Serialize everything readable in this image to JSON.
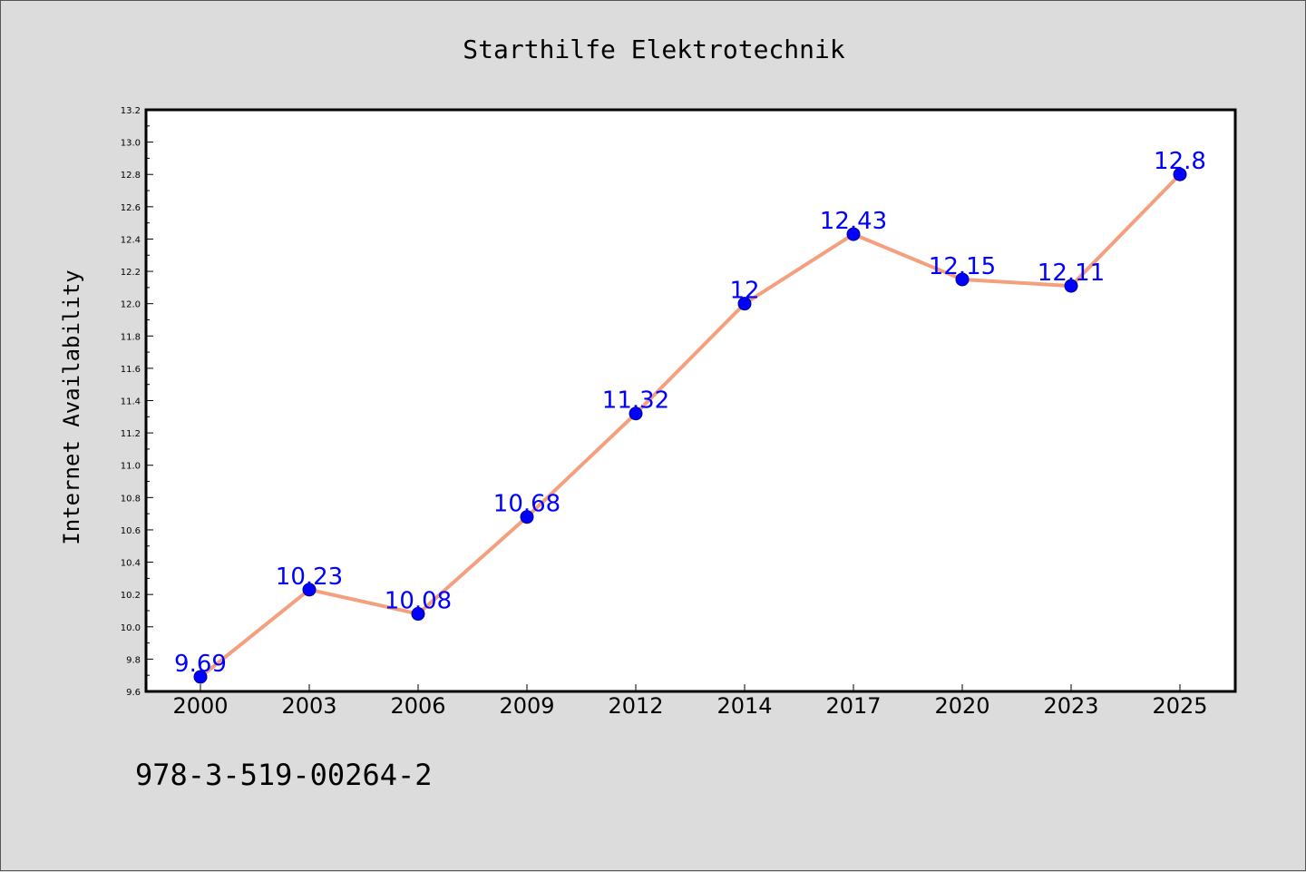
{
  "chart_data": {
    "type": "line",
    "title": "Starthilfe Elektrotechnik",
    "ylabel": "Internet Availability",
    "xlabel": "",
    "categories": [
      "2000",
      "2003",
      "2006",
      "2009",
      "2012",
      "2014",
      "2017",
      "2020",
      "2023",
      "2025"
    ],
    "series": [
      {
        "values": [
          9.69,
          10.23,
          10.08,
          10.68,
          11.32,
          12,
          12.43,
          12.15,
          12.11,
          12.8
        ]
      }
    ],
    "data_labels": [
      "9.69",
      "10.23",
      "10.08",
      "10.68",
      "11.32",
      "12",
      "12.43",
      "12.15",
      "12.11",
      "12.8"
    ],
    "ylim": [
      9.6,
      13.2
    ],
    "yticks": [
      "9.6",
      "9.8",
      "10.0",
      "10.2",
      "10.4",
      "10.6",
      "10.8",
      "11.0",
      "11.2",
      "11.4",
      "11.6",
      "11.8",
      "12.0",
      "12.2",
      "12.4",
      "12.6",
      "12.8",
      "13.0",
      "13.2"
    ],
    "grid": false,
    "legend": "none",
    "colors": {
      "line": "#f4a07f",
      "marker": "#0000ff",
      "label": "#0000ff",
      "background": "#dcdcdc",
      "plot_background": "#ffffff"
    }
  },
  "footer": {
    "isbn": "978-3-519-00264-2"
  }
}
